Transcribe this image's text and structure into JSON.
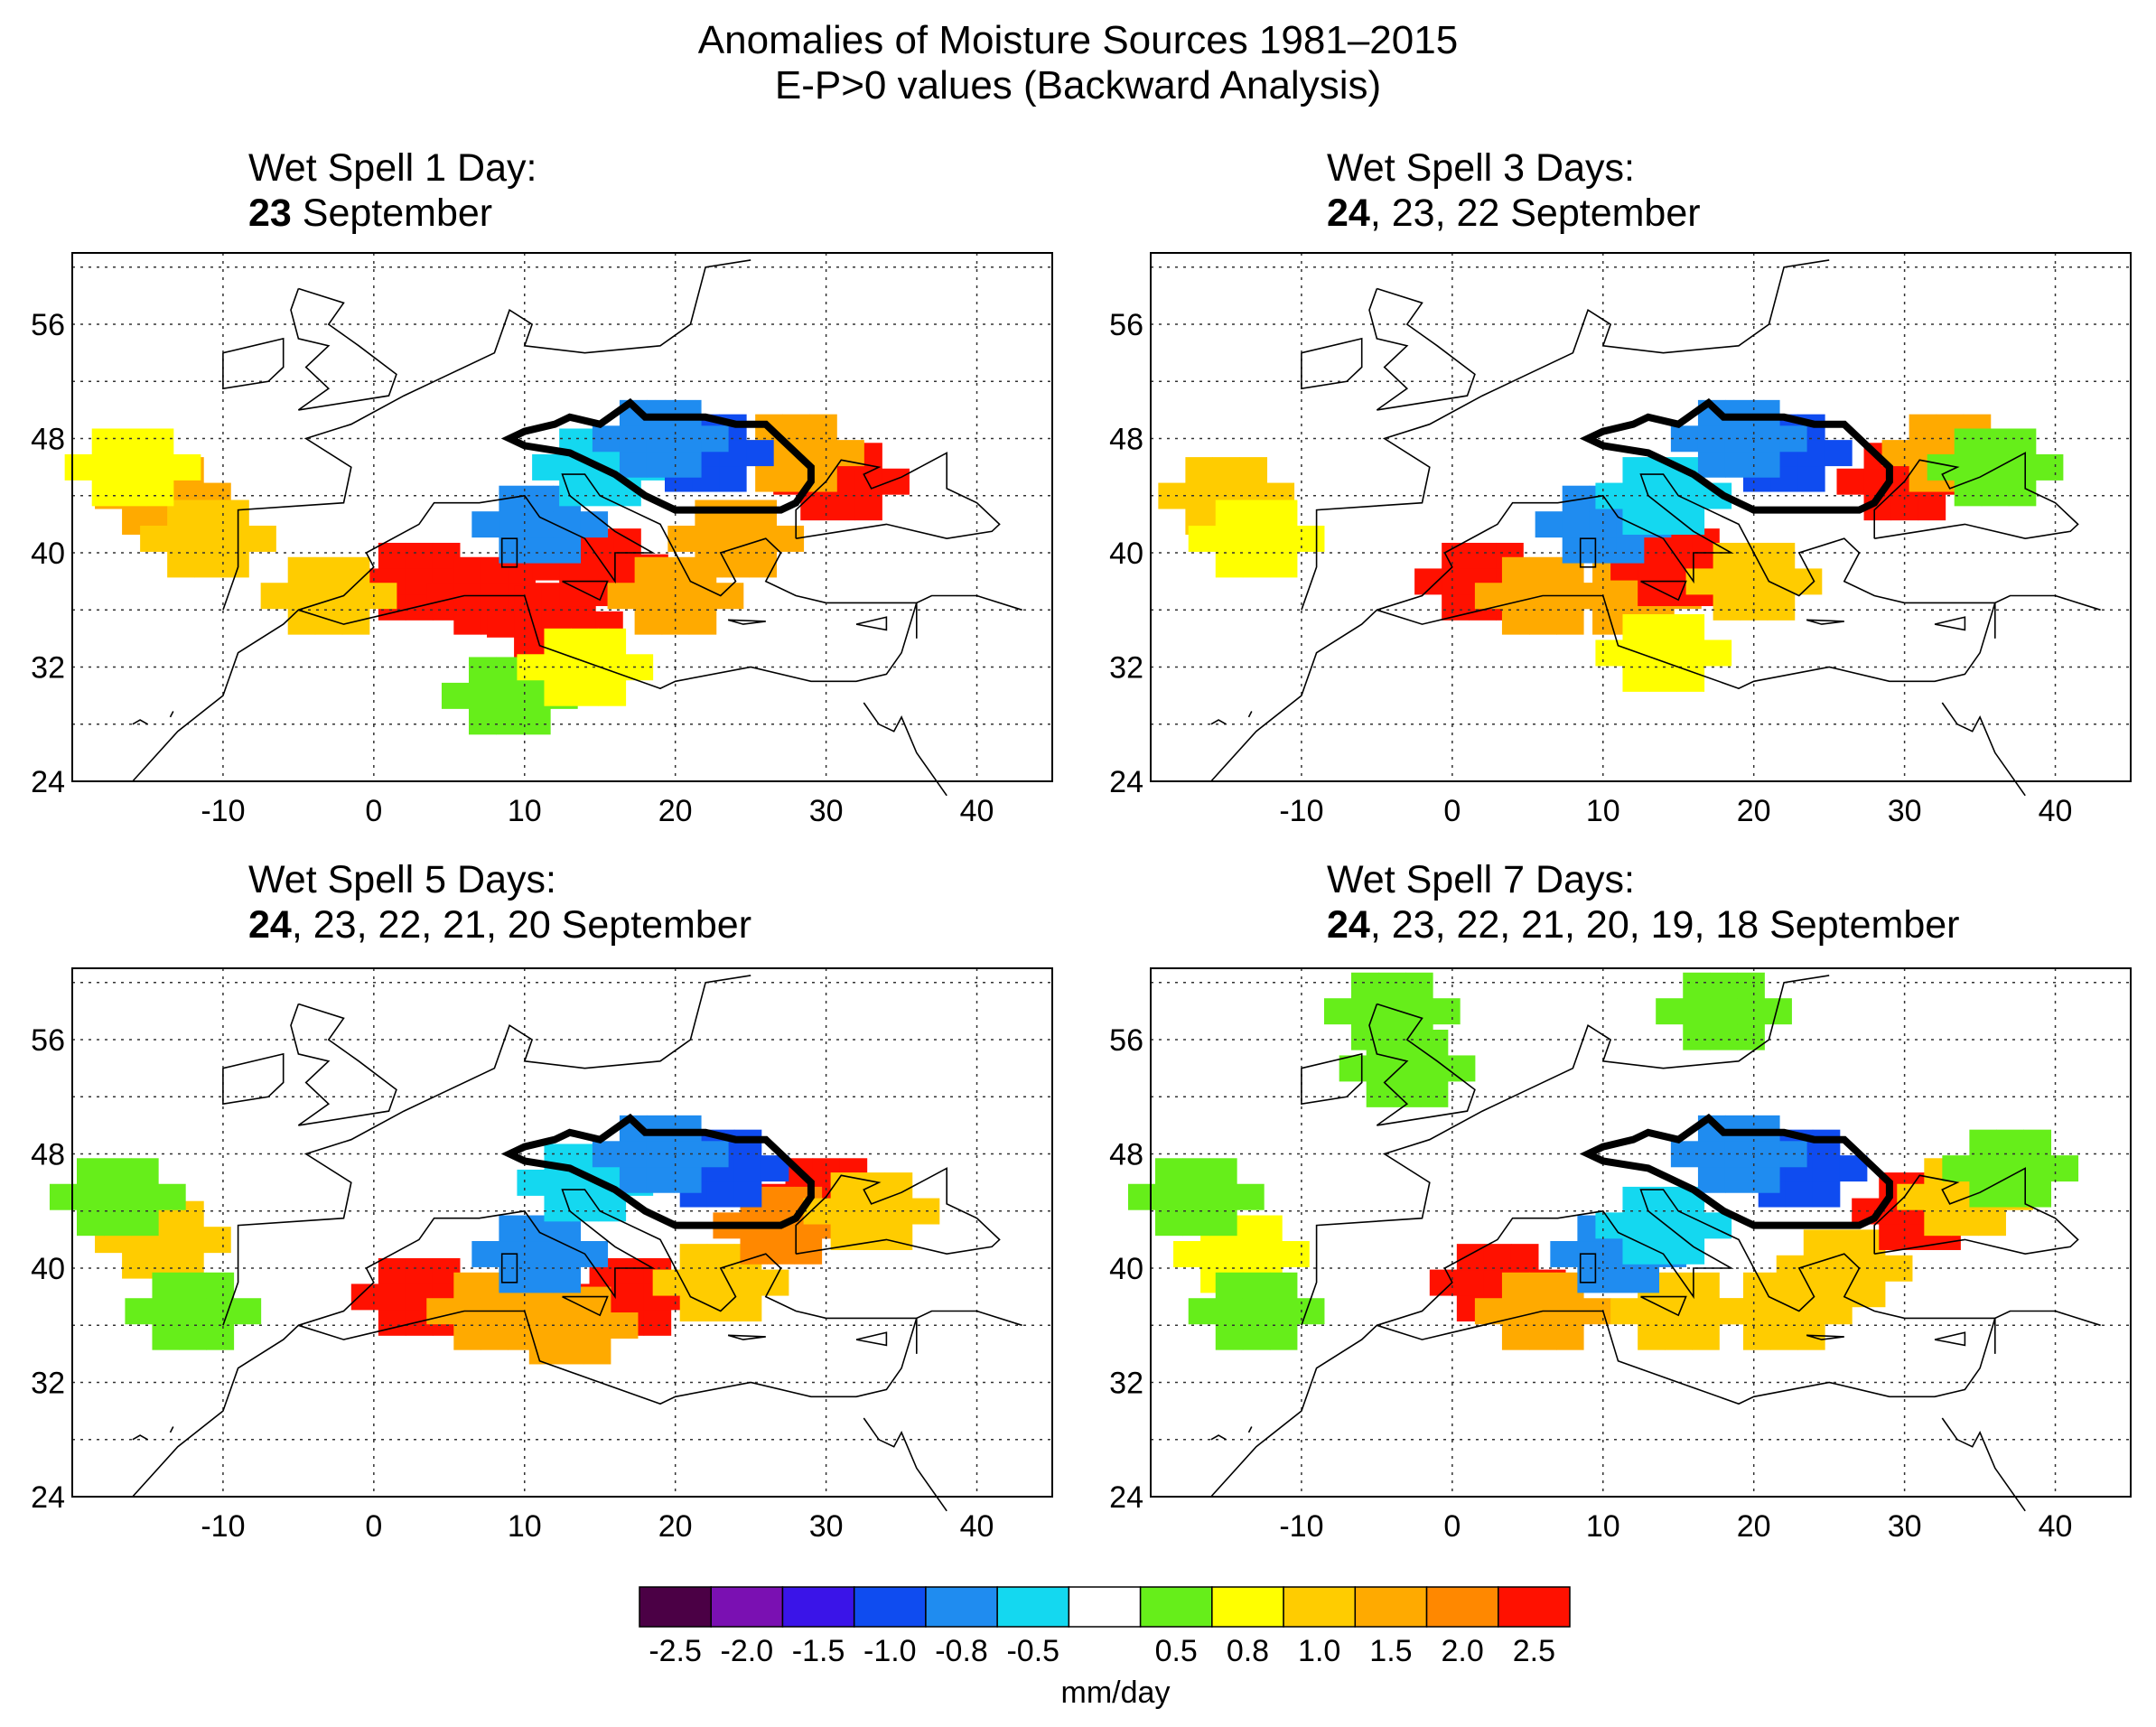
{
  "title": {
    "line1": "Anomalies of Moisture Sources 1981–2015",
    "line2": "E-P>0 values (Backward Analysis)"
  },
  "panels": [
    {
      "id": "1day",
      "line1": "Wet Spell 1 Day:",
      "bold": "23",
      "rest": " September"
    },
    {
      "id": "3days",
      "line1": "Wet Spell 3 Days:",
      "bold": "24",
      "rest": ", 23, 22 September"
    },
    {
      "id": "5days",
      "line1": "Wet Spell 5 Days:",
      "bold": "24",
      "rest": ", 23, 22, 21, 20 September"
    },
    {
      "id": "7days",
      "line1": "Wet Spell 7 Days:",
      "bold": "24",
      "rest": ", 23, 22, 21, 20, 19, 18 September"
    }
  ],
  "map": {
    "lon_range": [
      -20,
      45
    ],
    "lat_range": [
      24,
      61
    ],
    "x_ticks": [
      "-10",
      "0",
      "10",
      "20",
      "30",
      "40"
    ],
    "y_ticks": [
      "56",
      "48",
      "40",
      "32",
      "24"
    ],
    "grid": "dotted"
  },
  "anomaly_fields": [
    {
      "panel": "1day",
      "patches": [
        {
          "lon": -14,
          "lat": 44,
          "value": 1.5
        },
        {
          "lon": -11,
          "lat": 41,
          "value": 1.0
        },
        {
          "lon": -16,
          "lat": 46,
          "value": 0.8
        },
        {
          "lon": 3,
          "lat": 38,
          "value": 2.5
        },
        {
          "lon": 8,
          "lat": 37,
          "value": 2.5
        },
        {
          "lon": 12,
          "lat": 35,
          "value": 2.5
        },
        {
          "lon": 15,
          "lat": 39,
          "value": 2.5
        },
        {
          "lon": 20,
          "lat": 37,
          "value": 1.5
        },
        {
          "lon": 24,
          "lat": 41,
          "value": 1.5
        },
        {
          "lon": 31,
          "lat": 45,
          "value": 2.5
        },
        {
          "lon": 28,
          "lat": 47,
          "value": 1.5
        },
        {
          "lon": -3,
          "lat": 37,
          "value": 1.0
        },
        {
          "lon": 11,
          "lat": 42,
          "value": -0.8
        },
        {
          "lon": 15,
          "lat": 46,
          "value": -0.5
        },
        {
          "lon": 22,
          "lat": 47,
          "value": -1.0
        },
        {
          "lon": 19,
          "lat": 48,
          "value": -0.8
        },
        {
          "lon": 9,
          "lat": 30,
          "value": 0.5
        },
        {
          "lon": 14,
          "lat": 32,
          "value": 0.8
        }
      ]
    },
    {
      "panel": "3days",
      "patches": [
        {
          "lon": -15,
          "lat": 44,
          "value": 1.0
        },
        {
          "lon": -13,
          "lat": 41,
          "value": 0.8
        },
        {
          "lon": 2,
          "lat": 38,
          "value": 2.5
        },
        {
          "lon": 6,
          "lat": 37,
          "value": 1.5
        },
        {
          "lon": 12,
          "lat": 37,
          "value": 1.5
        },
        {
          "lon": 15,
          "lat": 39,
          "value": 2.5
        },
        {
          "lon": 20,
          "lat": 38,
          "value": 1.0
        },
        {
          "lon": 30,
          "lat": 45,
          "value": 2.5
        },
        {
          "lon": 33,
          "lat": 47,
          "value": 1.5
        },
        {
          "lon": 36,
          "lat": 46,
          "value": 0.5
        },
        {
          "lon": 10,
          "lat": 42,
          "value": -0.8
        },
        {
          "lon": 14,
          "lat": 44,
          "value": -0.5
        },
        {
          "lon": 22,
          "lat": 47,
          "value": -1.0
        },
        {
          "lon": 19,
          "lat": 48,
          "value": -0.8
        },
        {
          "lon": 14,
          "lat": 33,
          "value": 0.8
        }
      ]
    },
    {
      "panel": "5days",
      "patches": [
        {
          "lon": -14,
          "lat": 42,
          "value": 1.0
        },
        {
          "lon": -17,
          "lat": 45,
          "value": 0.5
        },
        {
          "lon": -12,
          "lat": 37,
          "value": 0.5
        },
        {
          "lon": 3,
          "lat": 38,
          "value": 2.5
        },
        {
          "lon": 8,
          "lat": 37,
          "value": 1.5
        },
        {
          "lon": 17,
          "lat": 38,
          "value": 2.5
        },
        {
          "lon": 13,
          "lat": 36,
          "value": 1.5
        },
        {
          "lon": 23,
          "lat": 39,
          "value": 1.0
        },
        {
          "lon": 30,
          "lat": 45,
          "value": 2.5
        },
        {
          "lon": 27,
          "lat": 43,
          "value": 2.0
        },
        {
          "lon": 33,
          "lat": 44,
          "value": 1.0
        },
        {
          "lon": 11,
          "lat": 41,
          "value": -0.8
        },
        {
          "lon": 14,
          "lat": 46,
          "value": -0.5
        },
        {
          "lon": 23,
          "lat": 47,
          "value": -1.0
        },
        {
          "lon": 19,
          "lat": 48,
          "value": -0.8
        }
      ]
    },
    {
      "panel": "7days",
      "patches": [
        {
          "lon": -14,
          "lat": 41,
          "value": 0.8
        },
        {
          "lon": -17,
          "lat": 45,
          "value": 0.5
        },
        {
          "lon": -13,
          "lat": 37,
          "value": 0.5
        },
        {
          "lon": 3,
          "lat": 39,
          "value": 2.5
        },
        {
          "lon": 6,
          "lat": 37,
          "value": 1.5
        },
        {
          "lon": 15,
          "lat": 37,
          "value": 1.0
        },
        {
          "lon": 22,
          "lat": 37,
          "value": 1.0
        },
        {
          "lon": 26,
          "lat": 40,
          "value": 1.0
        },
        {
          "lon": 31,
          "lat": 44,
          "value": 2.5
        },
        {
          "lon": 34,
          "lat": 45,
          "value": 1.0
        },
        {
          "lon": 37,
          "lat": 47,
          "value": 0.5
        },
        {
          "lon": 11,
          "lat": 41,
          "value": -0.8
        },
        {
          "lon": 14,
          "lat": 43,
          "value": -0.5
        },
        {
          "lon": 23,
          "lat": 47,
          "value": -1.0
        },
        {
          "lon": 19,
          "lat": 48,
          "value": -0.8
        },
        {
          "lon": 18,
          "lat": 58,
          "value": 0.5
        },
        {
          "lon": -4,
          "lat": 58,
          "value": 0.5
        },
        {
          "lon": -3,
          "lat": 54,
          "value": 0.5
        }
      ]
    }
  ],
  "colorbar": {
    "colors": [
      "#4b0045",
      "#7a10b2",
      "#3a14e8",
      "#0f4cf0",
      "#1f8cf0",
      "#14d8f0",
      "#ffffff",
      "#66ee1a",
      "#ffff00",
      "#ffcc00",
      "#ffaa00",
      "#ff8800",
      "#ff1100"
    ],
    "labels": [
      "-2.5",
      "-2.0",
      "-1.5",
      "-1.0",
      "-0.8",
      "-0.5",
      "0.5",
      "0.8",
      "1.0",
      "1.5",
      "2.0",
      "2.5"
    ],
    "unit": "mm/day"
  },
  "colors": {
    "frame": "#000000",
    "coast": "#000000",
    "outline": "#000000"
  }
}
